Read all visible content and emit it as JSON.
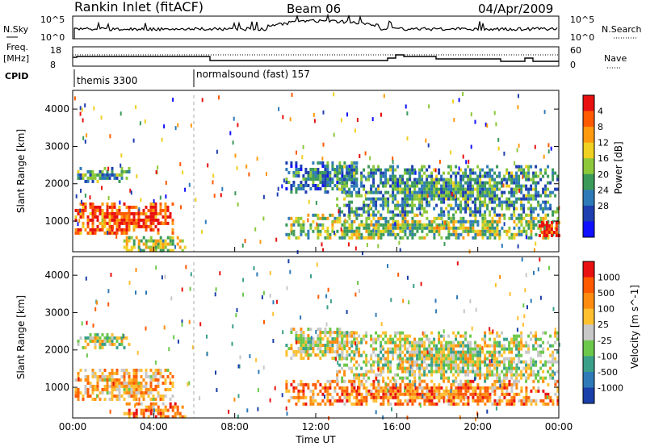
{
  "header": {
    "station": "Rankin Inlet (fitACF)",
    "beam": "Beam 06",
    "date": "04/Apr/2009"
  },
  "top_panels": {
    "nsky_label": "N.Sky",
    "nsky_hi": "10^5",
    "nsky_lo": "10^0",
    "nsearch_label": "N.Search",
    "nsearch_hi": "10^5",
    "nsearch_lo": "10^0",
    "freq_label": "Freq.",
    "freq_unit": "[MHz]",
    "freq_ticks": [
      "18",
      "8"
    ],
    "nave_label": "Nave",
    "nave_ticks": [
      "60",
      "0"
    ],
    "cpid_label": "CPID",
    "cpid_segments": [
      {
        "start_hour": 0,
        "label": "themis 3300"
      },
      {
        "start_hour": 6,
        "label": "normalsound (fast) 157"
      }
    ]
  },
  "chart_data": [
    {
      "type": "heatmap",
      "panel": "power",
      "xlabel": "Time UT",
      "ylabel": "Slant Range [km]",
      "x_ticks": [
        "00:00",
        "04:00",
        "08:00",
        "12:00",
        "16:00",
        "20:00",
        "00:00"
      ],
      "xlim_hours": [
        0,
        24
      ],
      "y_ticks": [
        1000,
        2000,
        3000,
        4000
      ],
      "ylim_km": [
        180,
        4500
      ],
      "colorbar_label": "Power [dB]",
      "colorbar_ticks": [
        4,
        8,
        12,
        16,
        20,
        24,
        28
      ],
      "colorbar_range": [
        0,
        30
      ],
      "colors": [
        "#1010ff",
        "#1f3fb0",
        "#2e7ab8",
        "#3a9a5a",
        "#8cc83a",
        "#f0d020",
        "#ff9a10",
        "#ff5a00",
        "#e81010"
      ],
      "echo_regions": [
        {
          "t0": 0.1,
          "t1": 2.8,
          "r0": 2100,
          "r1": 2450,
          "level": 0.35
        },
        {
          "t0": 0.1,
          "t1": 5.0,
          "r0": 650,
          "r1": 1500,
          "level": 0.85
        },
        {
          "t0": 2.5,
          "t1": 5.5,
          "r0": 180,
          "r1": 600,
          "level": 0.55
        },
        {
          "t0": 10.5,
          "t1": 14.0,
          "r0": 1800,
          "r1": 2600,
          "level": 0.3
        },
        {
          "t0": 10.5,
          "t1": 24.0,
          "r0": 550,
          "r1": 1200,
          "level": 0.5
        },
        {
          "t0": 13.0,
          "t1": 24.0,
          "r0": 1200,
          "r1": 2500,
          "level": 0.35
        },
        {
          "t0": 23.0,
          "t1": 24.0,
          "r0": 600,
          "r1": 1000,
          "level": 0.95
        }
      ]
    },
    {
      "type": "heatmap",
      "panel": "velocity",
      "xlabel": "Time UT",
      "ylabel": "Slant Range [km]",
      "x_ticks": [
        "00:00",
        "04:00",
        "08:00",
        "12:00",
        "16:00",
        "20:00",
        "00:00"
      ],
      "xlim_hours": [
        0,
        24
      ],
      "y_ticks": [
        1000,
        2000,
        3000,
        4000
      ],
      "ylim_km": [
        180,
        4500
      ],
      "colorbar_label": "Velocity [m s^-1]",
      "colorbar_ticks": [
        "1000",
        "500",
        "100",
        "25",
        "-25",
        "-100",
        "-500",
        "-1000"
      ],
      "colors": [
        "#1a3fa8",
        "#2e7ab8",
        "#3aa08a",
        "#6cc84a",
        "#c8c8c8",
        "#ffc030",
        "#ff8c10",
        "#ff5a00",
        "#e81010"
      ],
      "echo_regions": [
        {
          "t0": 0.1,
          "t1": 2.8,
          "r0": 2100,
          "r1": 2450,
          "level": 0.5
        },
        {
          "t0": 0.1,
          "t1": 5.0,
          "r0": 650,
          "r1": 1500,
          "level": 0.65
        },
        {
          "t0": 2.5,
          "t1": 5.5,
          "r0": 180,
          "r1": 600,
          "level": 0.75
        },
        {
          "t0": 10.5,
          "t1": 14.0,
          "r0": 1800,
          "r1": 2600,
          "level": 0.5
        },
        {
          "t0": 10.5,
          "t1": 24.0,
          "r0": 550,
          "r1": 1200,
          "level": 0.75
        },
        {
          "t0": 13.0,
          "t1": 24.0,
          "r0": 1200,
          "r1": 2500,
          "level": 0.5
        }
      ]
    }
  ]
}
